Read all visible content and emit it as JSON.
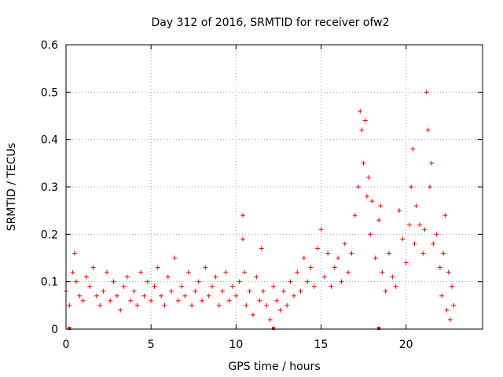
{
  "chart_data": {
    "type": "scatter",
    "title": "Day 312 of 2016, SRMTID for receiver ofw2",
    "xlabel": "GPS time / hours",
    "ylabel": "SRMTID / TECUs",
    "xlim": [
      0,
      24.5
    ],
    "ylim": [
      0,
      0.6
    ],
    "xticks": [
      0,
      5,
      10,
      15,
      20
    ],
    "xtick_labels": [
      "0",
      "5",
      "10",
      "15",
      "20"
    ],
    "yticks": [
      0,
      0.1,
      0.2,
      0.3,
      0.4,
      0.5,
      0.6
    ],
    "ytick_labels": [
      "0",
      "0.1",
      "0.2",
      "0.3",
      "0.4",
      "0.5",
      "0.6"
    ],
    "grid": true,
    "marker": "plus",
    "series": [
      {
        "name": "SRMTID",
        "color": "#ff0000",
        "x": [
          0.0,
          0.2,
          0.4,
          0.5,
          0.6,
          0.8,
          1.0,
          1.2,
          1.4,
          1.6,
          1.8,
          2.0,
          2.2,
          2.4,
          2.6,
          2.8,
          3.0,
          3.2,
          3.4,
          3.6,
          3.8,
          4.0,
          4.2,
          4.4,
          4.6,
          4.8,
          5.0,
          5.2,
          5.4,
          5.6,
          5.8,
          6.0,
          6.2,
          6.4,
          6.6,
          6.8,
          7.0,
          7.2,
          7.4,
          7.6,
          7.8,
          8.0,
          8.2,
          8.4,
          8.6,
          8.8,
          9.0,
          9.2,
          9.4,
          9.6,
          9.8,
          10.0,
          10.2,
          10.4,
          10.4,
          10.5,
          10.6,
          10.8,
          11.0,
          11.2,
          11.4,
          11.5,
          11.6,
          11.8,
          12.0,
          12.2,
          12.4,
          12.6,
          12.8,
          13.0,
          13.2,
          13.4,
          13.6,
          13.8,
          14.0,
          14.2,
          14.4,
          14.6,
          14.8,
          15.0,
          15.2,
          15.4,
          15.6,
          15.8,
          16.0,
          16.2,
          16.4,
          16.6,
          16.8,
          17.0,
          17.2,
          17.3,
          17.4,
          17.5,
          17.6,
          17.7,
          17.8,
          17.9,
          18.0,
          18.2,
          18.4,
          18.5,
          18.6,
          18.8,
          19.0,
          19.2,
          19.4,
          19.6,
          19.8,
          20.0,
          20.2,
          20.3,
          20.4,
          20.5,
          20.6,
          20.8,
          21.0,
          21.1,
          21.2,
          21.3,
          21.4,
          21.5,
          21.6,
          21.8,
          22.0,
          22.1,
          22.2,
          22.3,
          22.4,
          22.5,
          22.6,
          22.7,
          22.8
        ],
        "y": [
          0.08,
          0.05,
          0.12,
          0.16,
          0.1,
          0.07,
          0.06,
          0.11,
          0.09,
          0.13,
          0.07,
          0.05,
          0.08,
          0.12,
          0.06,
          0.1,
          0.07,
          0.04,
          0.09,
          0.11,
          0.06,
          0.08,
          0.05,
          0.12,
          0.07,
          0.1,
          0.06,
          0.09,
          0.13,
          0.07,
          0.05,
          0.11,
          0.08,
          0.15,
          0.06,
          0.09,
          0.07,
          0.12,
          0.05,
          0.08,
          0.1,
          0.06,
          0.13,
          0.07,
          0.09,
          0.11,
          0.05,
          0.08,
          0.12,
          0.06,
          0.09,
          0.07,
          0.1,
          0.24,
          0.19,
          0.12,
          0.05,
          0.08,
          0.03,
          0.11,
          0.06,
          0.17,
          0.08,
          0.05,
          0.02,
          0.09,
          0.06,
          0.04,
          0.08,
          0.05,
          0.1,
          0.07,
          0.12,
          0.08,
          0.15,
          0.1,
          0.13,
          0.09,
          0.17,
          0.21,
          0.11,
          0.16,
          0.09,
          0.13,
          0.15,
          0.1,
          0.18,
          0.12,
          0.16,
          0.24,
          0.3,
          0.46,
          0.42,
          0.35,
          0.44,
          0.28,
          0.32,
          0.2,
          0.27,
          0.15,
          0.23,
          0.26,
          0.12,
          0.08,
          0.16,
          0.11,
          0.09,
          0.25,
          0.19,
          0.14,
          0.22,
          0.3,
          0.38,
          0.18,
          0.26,
          0.22,
          0.16,
          0.21,
          0.5,
          0.42,
          0.3,
          0.35,
          0.18,
          0.2,
          0.13,
          0.07,
          0.16,
          0.24,
          0.04,
          0.12,
          0.02,
          0.09,
          0.05
        ],
        "zero_markers_x": [
          0.2,
          12.2,
          18.4
        ]
      }
    ]
  }
}
